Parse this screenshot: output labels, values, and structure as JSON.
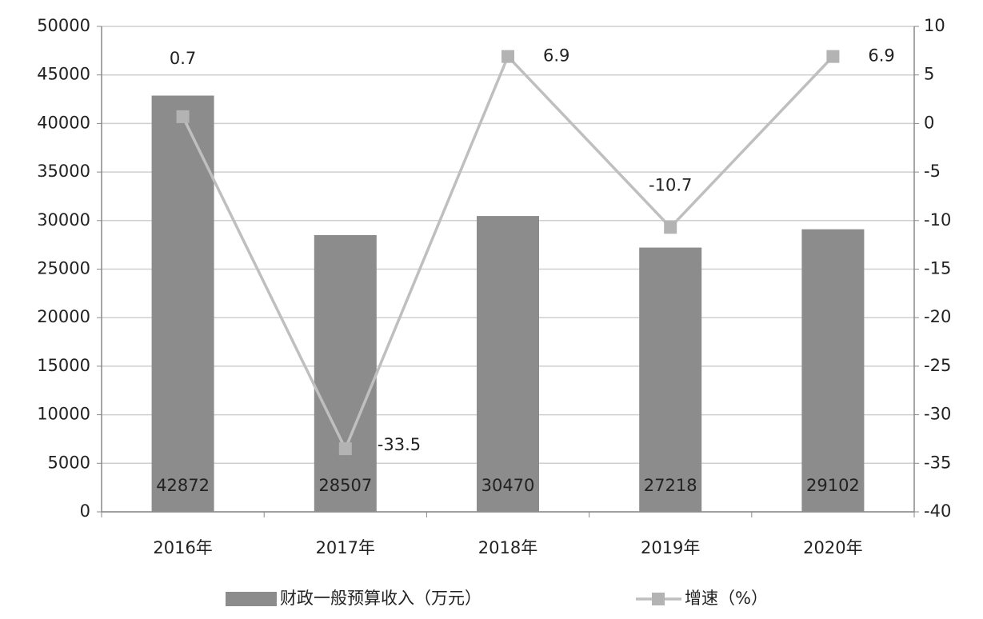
{
  "chart_data": {
    "type": "bar-line",
    "categories": [
      "2016年",
      "2017年",
      "2018年",
      "2019年",
      "2020年"
    ],
    "series": [
      {
        "name": "财政一般预算收入（万元）",
        "type": "bar",
        "color": "#8c8c8c",
        "values": [
          42872,
          28507,
          30470,
          27218,
          29102
        ]
      },
      {
        "name": "增速（%）",
        "type": "line",
        "axis": "y2",
        "color": "#bfbfbf",
        "values": [
          0.7,
          -33.5,
          6.9,
          -10.7,
          6.9
        ]
      }
    ],
    "ylim": [
      0,
      50000
    ],
    "yticks": [
      0,
      5000,
      10000,
      15000,
      20000,
      25000,
      30000,
      35000,
      40000,
      45000,
      50000
    ],
    "y2lim": [
      -40,
      10
    ],
    "y2ticks": [
      -40,
      -35,
      -30,
      -25,
      -20,
      -15,
      -10,
      -5,
      0,
      5,
      10
    ],
    "grid": true,
    "legend": "bottom"
  }
}
